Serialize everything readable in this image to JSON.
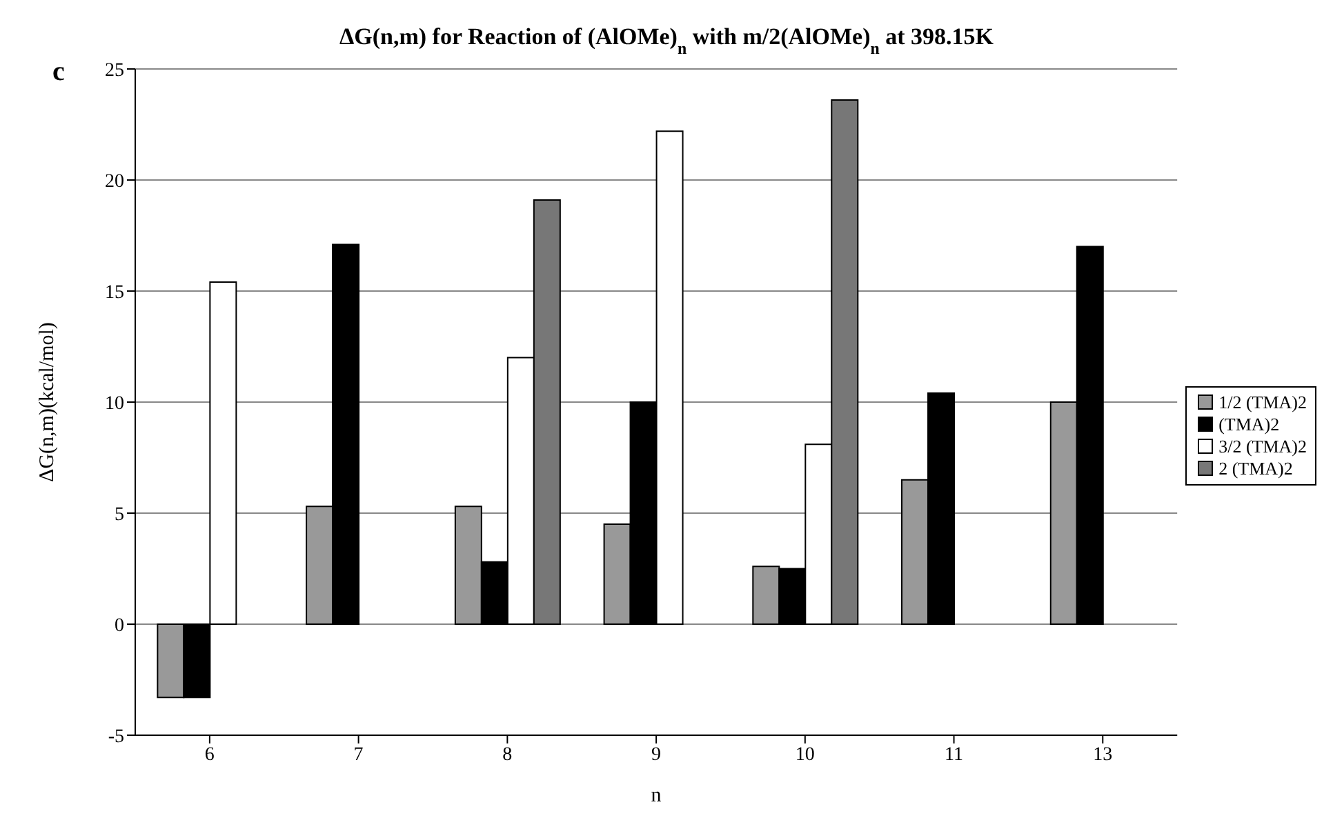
{
  "chart_data": {
    "type": "bar",
    "title": "ΔG(n,m) for Reaction of (AlOMe)$_{n}$ with m/2(AlOMe)$_{n}$ at 398.15K",
    "xlabel": "n",
    "ylabel": "ΔG(n,m)(kcal/mol)",
    "annotations": [
      "c"
    ],
    "categories": [
      "6",
      "7",
      "8",
      "9",
      "10",
      "11",
      "13"
    ],
    "series": [
      {
        "name": "1/2 (TMA)2",
        "color": "#999999",
        "values": [
          -3.3,
          5.3,
          5.3,
          4.5,
          2.6,
          6.5,
          10.0
        ]
      },
      {
        "name": "(TMA)2",
        "color": "#000000",
        "values": [
          -3.3,
          17.1,
          2.8,
          10.0,
          2.5,
          10.4,
          17.0
        ]
      },
      {
        "name": "3/2 (TMA)2",
        "color": "#ffffff",
        "values": [
          15.4,
          null,
          12.0,
          22.2,
          8.1,
          null,
          null
        ]
      },
      {
        "name": "2 (TMA)2",
        "color": "#777777",
        "values": [
          null,
          null,
          19.1,
          null,
          23.6,
          null,
          null
        ]
      }
    ],
    "ylim": [
      -5,
      25
    ],
    "yticks": [
      -5,
      0,
      5,
      10,
      15,
      20,
      25
    ],
    "grid": "y",
    "legend": "right"
  }
}
